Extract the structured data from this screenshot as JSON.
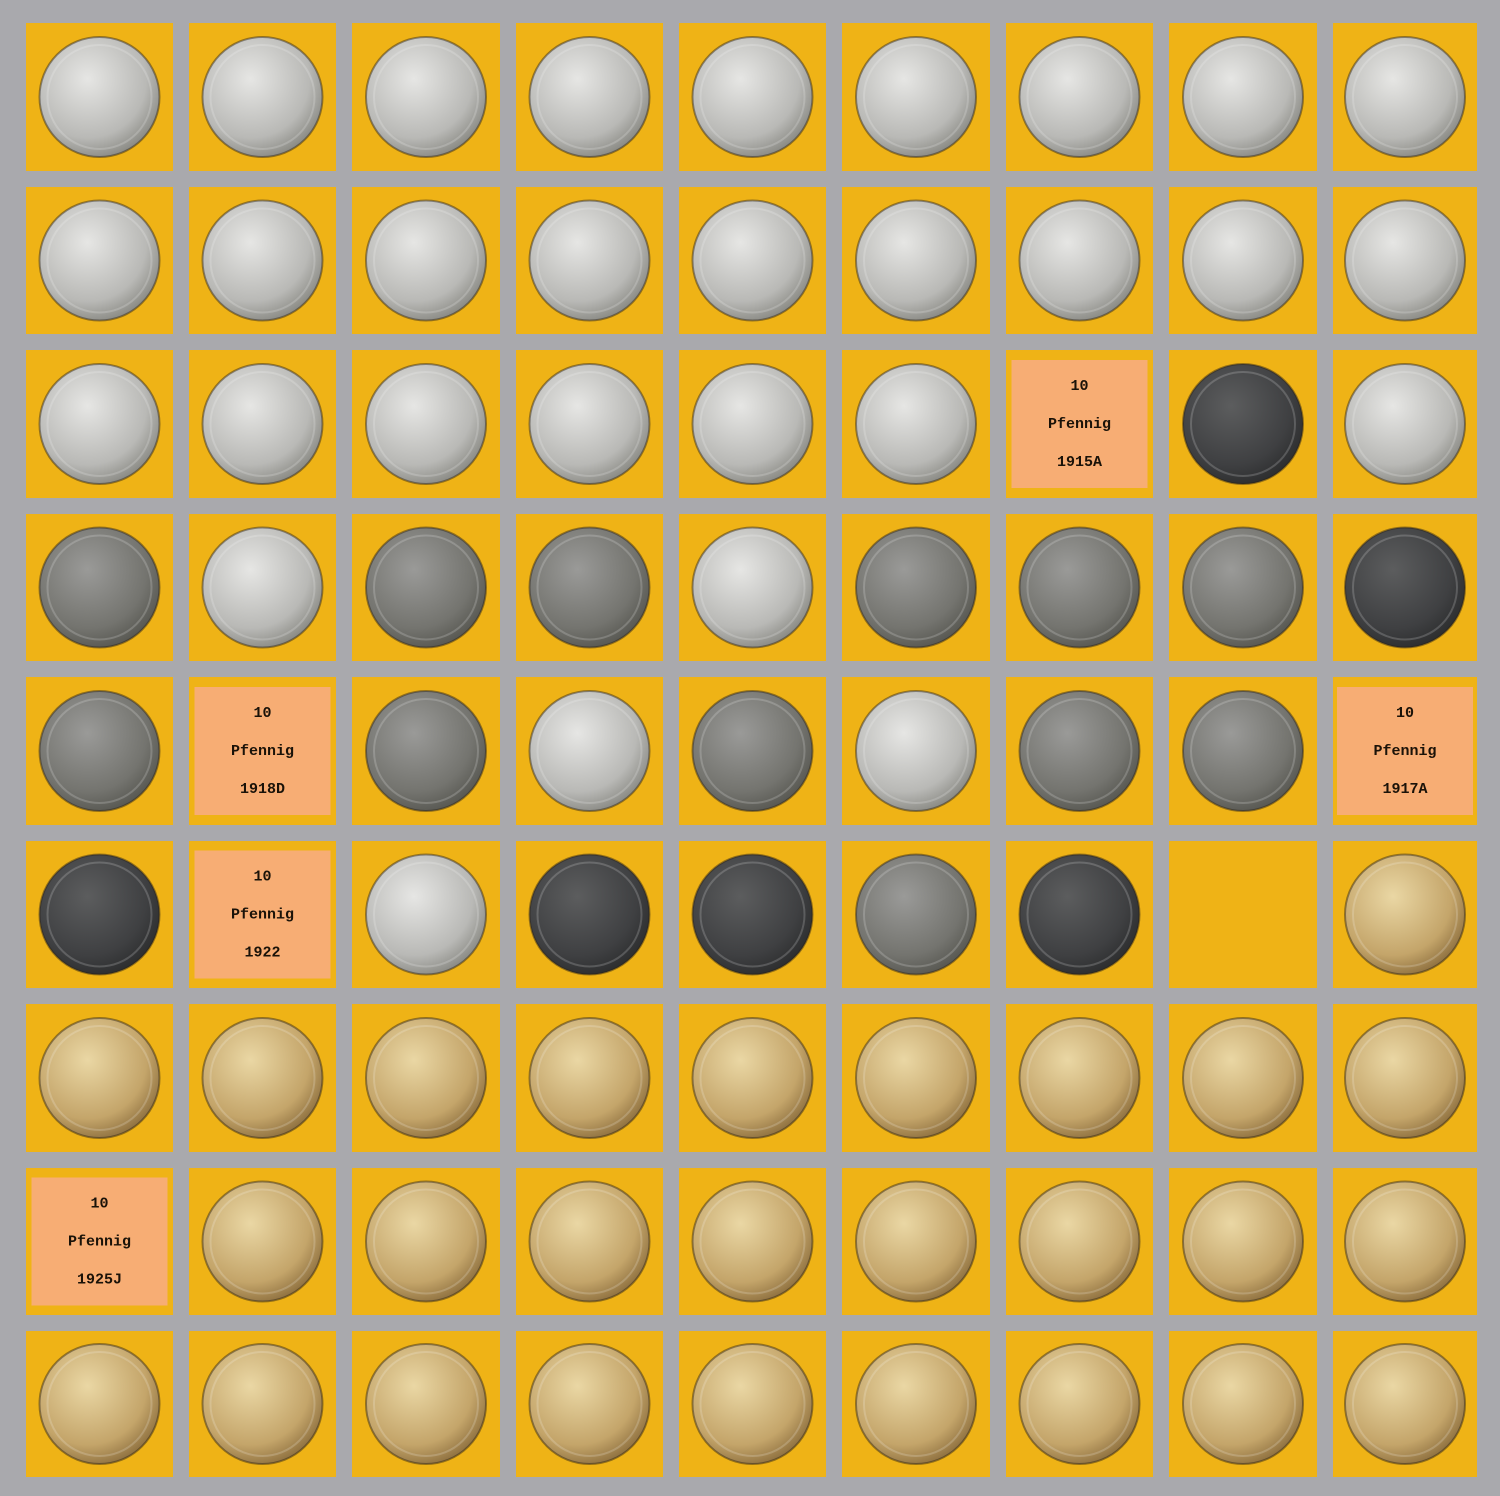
{
  "labels": [
    {
      "denomination": "10",
      "unit": "Pfennig",
      "year": "1915A"
    },
    {
      "denomination": "10",
      "unit": "Pfennig",
      "year": "1918D"
    },
    {
      "denomination": "10",
      "unit": "Pfennig",
      "year": "1917A"
    },
    {
      "denomination": "10",
      "unit": "Pfennig",
      "year": "1922"
    },
    {
      "denomination": "10",
      "unit": "Pfennig",
      "year": "1925J"
    }
  ]
}
